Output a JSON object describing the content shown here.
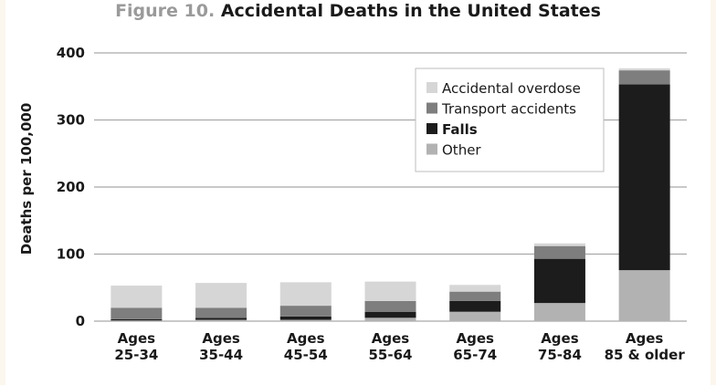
{
  "title": {
    "prefix": "Figure 10.",
    "main": "Accidental Deaths in the United States"
  },
  "colors": {
    "Accidental overdose": "#d6d6d6",
    "Transport accidents": "#7e7e7e",
    "Falls": "#1c1c1c",
    "Other": "#b2b2b2",
    "gridline": "#a9a9a9"
  },
  "chart_data": {
    "type": "bar",
    "stacked": true,
    "title": "Figure 10. Accidental Deaths in the United States",
    "xlabel": "",
    "ylabel": "Deaths per 100,000",
    "ylim": [
      0,
      400
    ],
    "yticks": [
      0,
      100,
      200,
      300,
      400
    ],
    "grid": true,
    "legend_position": "top-right",
    "categories": [
      [
        "Ages",
        "25-34"
      ],
      [
        "Ages",
        "35-44"
      ],
      [
        "Ages",
        "45-54"
      ],
      [
        "Ages",
        "55-64"
      ],
      [
        "Ages",
        "65-74"
      ],
      [
        "Ages",
        "75-84"
      ],
      [
        "Ages",
        "85 & older"
      ]
    ],
    "series": [
      {
        "name": "Other",
        "values": [
          1,
          2,
          2,
          5,
          14,
          27,
          76
        ]
      },
      {
        "name": "Falls",
        "values": [
          2,
          3,
          5,
          9,
          16,
          66,
          277
        ]
      },
      {
        "name": "Transport accidents",
        "values": [
          17,
          15,
          16,
          16,
          14,
          19,
          21
        ]
      },
      {
        "name": "Accidental overdose",
        "values": [
          33,
          37,
          35,
          29,
          10,
          4,
          3
        ]
      }
    ],
    "legend": [
      {
        "name": "Accidental overdose",
        "bold": false
      },
      {
        "name": "Transport accidents",
        "bold": false
      },
      {
        "name": "Falls",
        "bold": true
      },
      {
        "name": "Other",
        "bold": false
      }
    ]
  }
}
